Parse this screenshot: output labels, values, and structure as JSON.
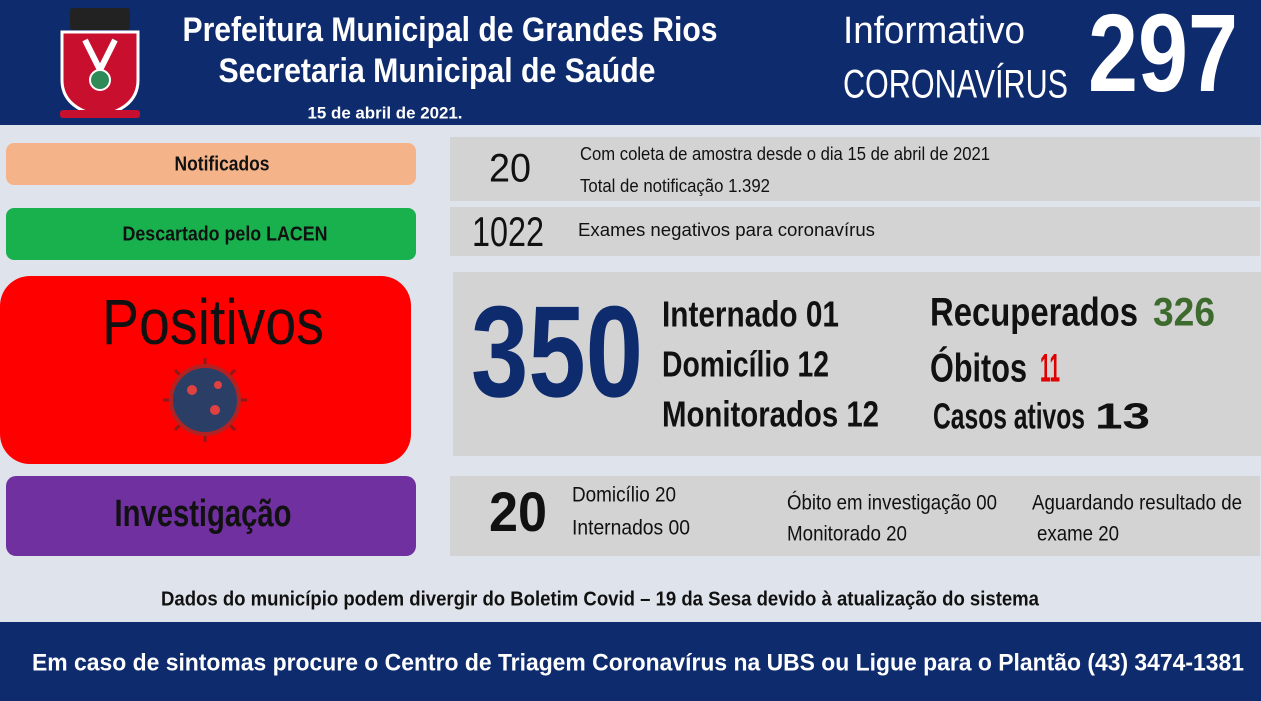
{
  "header": {
    "title": "Prefeitura Municipal de Grandes Rios",
    "subtitle": "Secretaria Municipal de Saúde",
    "date": "15 de abril de 2021.",
    "info_line1": "Informativo",
    "info_line2": "CORONAVÍRUS",
    "edition": "297"
  },
  "notificados": {
    "label": "Notificados",
    "number": "20",
    "lines": [
      "Com coleta de amostra desde o dia 15 de abril de 2021",
      "Total de notificação 1.392"
    ]
  },
  "descartado": {
    "label": "Descartado  pelo LACEN",
    "number": "1022",
    "lines": [
      "Exames negativos  para coronavírus"
    ]
  },
  "positivos": {
    "label": "Positivos",
    "number": "350",
    "left": [
      "Internado 01",
      "Domicílio 12",
      "Monitorados 12"
    ],
    "right": [
      {
        "label": "Recuperados",
        "value": "326"
      },
      {
        "label": "Óbitos",
        "value": "11"
      },
      {
        "label": "Casos ativos",
        "value": "13"
      }
    ]
  },
  "investigacao": {
    "label": "Investigação",
    "number": "20",
    "col1": [
      "Domicílio  20",
      "Internados  00"
    ],
    "col2": [
      "Óbito  em investigação  00",
      "Monitorado  20"
    ],
    "col3": [
      "Aguardando resultado de",
      "exame 20"
    ]
  },
  "note": "Dados do município  podem  divergir do Boletim  Covid – 19 da Sesa devido à atualização  do sistema",
  "footer": "Em caso de sintomas  procure  o Centro de Triagem  Coronavírus  na UBS ou Ligue para o Plantão  (43) 3474-1381"
}
